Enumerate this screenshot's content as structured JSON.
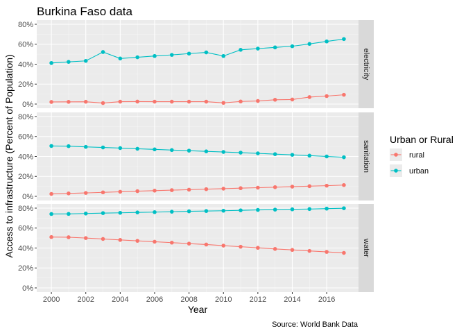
{
  "chart_data": {
    "type": "line",
    "title": "Burkina Faso data",
    "xlabel": "Year",
    "ylabel": "Access to infrastructure (Percent of Population)",
    "caption": "Source: World Bank Data",
    "legend": {
      "title": "Urban or Rural",
      "position": "right"
    },
    "x": [
      2000,
      2001,
      2002,
      2003,
      2004,
      2005,
      2006,
      2007,
      2008,
      2009,
      2010,
      2011,
      2012,
      2013,
      2014,
      2015,
      2016,
      2017
    ],
    "xticks": [
      "2000",
      "2002",
      "2004",
      "2006",
      "2008",
      "2010",
      "2012",
      "2014",
      "2016"
    ],
    "xlim": [
      1999.15,
      2017.85
    ],
    "yticks": [
      "0%",
      "20%",
      "40%",
      "60%",
      "80%"
    ],
    "ylim": [
      0,
      80
    ],
    "grid": true,
    "colors": {
      "rural": "#F8766D",
      "urban": "#00BFC4"
    },
    "panels": [
      {
        "label": "electricity",
        "series": [
          {
            "name": "rural",
            "values": [
              2.1,
              2.2,
              2.3,
              1.0,
              2.4,
              2.5,
              2.4,
              2.4,
              2.4,
              2.4,
              1.2,
              2.6,
              3.1,
              4.3,
              4.6,
              7.0,
              8.0,
              9.3
            ]
          },
          {
            "name": "urban",
            "values": [
              41.2,
              42.3,
              43.3,
              52.2,
              45.7,
              46.9,
              48.2,
              49.3,
              50.6,
              51.8,
              48.2,
              54.4,
              55.6,
              56.8,
              58.0,
              60.3,
              62.8,
              65.2
            ]
          }
        ]
      },
      {
        "label": "sanitation",
        "series": [
          {
            "name": "rural",
            "values": [
              2.4,
              2.9,
              3.4,
              4.0,
              4.6,
              5.2,
              5.7,
              6.2,
              6.7,
              7.2,
              7.7,
              8.2,
              8.7,
              9.2,
              9.7,
              10.2,
              10.7,
              11.3
            ]
          },
          {
            "name": "urban",
            "values": [
              50.5,
              50.3,
              49.6,
              49.0,
              48.4,
              47.7,
              47.1,
              46.4,
              45.8,
              45.1,
              44.5,
              43.8,
              43.1,
              42.3,
              41.6,
              40.8,
              40.0,
              39.2
            ]
          }
        ]
      },
      {
        "label": "water",
        "series": [
          {
            "name": "rural",
            "values": [
              51.0,
              50.8,
              50.0,
              49.1,
              48.1,
              47.2,
              46.3,
              45.4,
              44.4,
              43.5,
              42.4,
              41.3,
              40.2,
              39.1,
              38.1,
              37.1,
              36.1,
              35.1
            ]
          },
          {
            "name": "urban",
            "values": [
              74.1,
              74.2,
              74.6,
              75.0,
              75.3,
              75.7,
              76.0,
              76.4,
              76.8,
              77.1,
              77.4,
              77.8,
              78.2,
              78.5,
              78.8,
              79.1,
              79.5,
              79.9
            ]
          }
        ]
      }
    ]
  }
}
